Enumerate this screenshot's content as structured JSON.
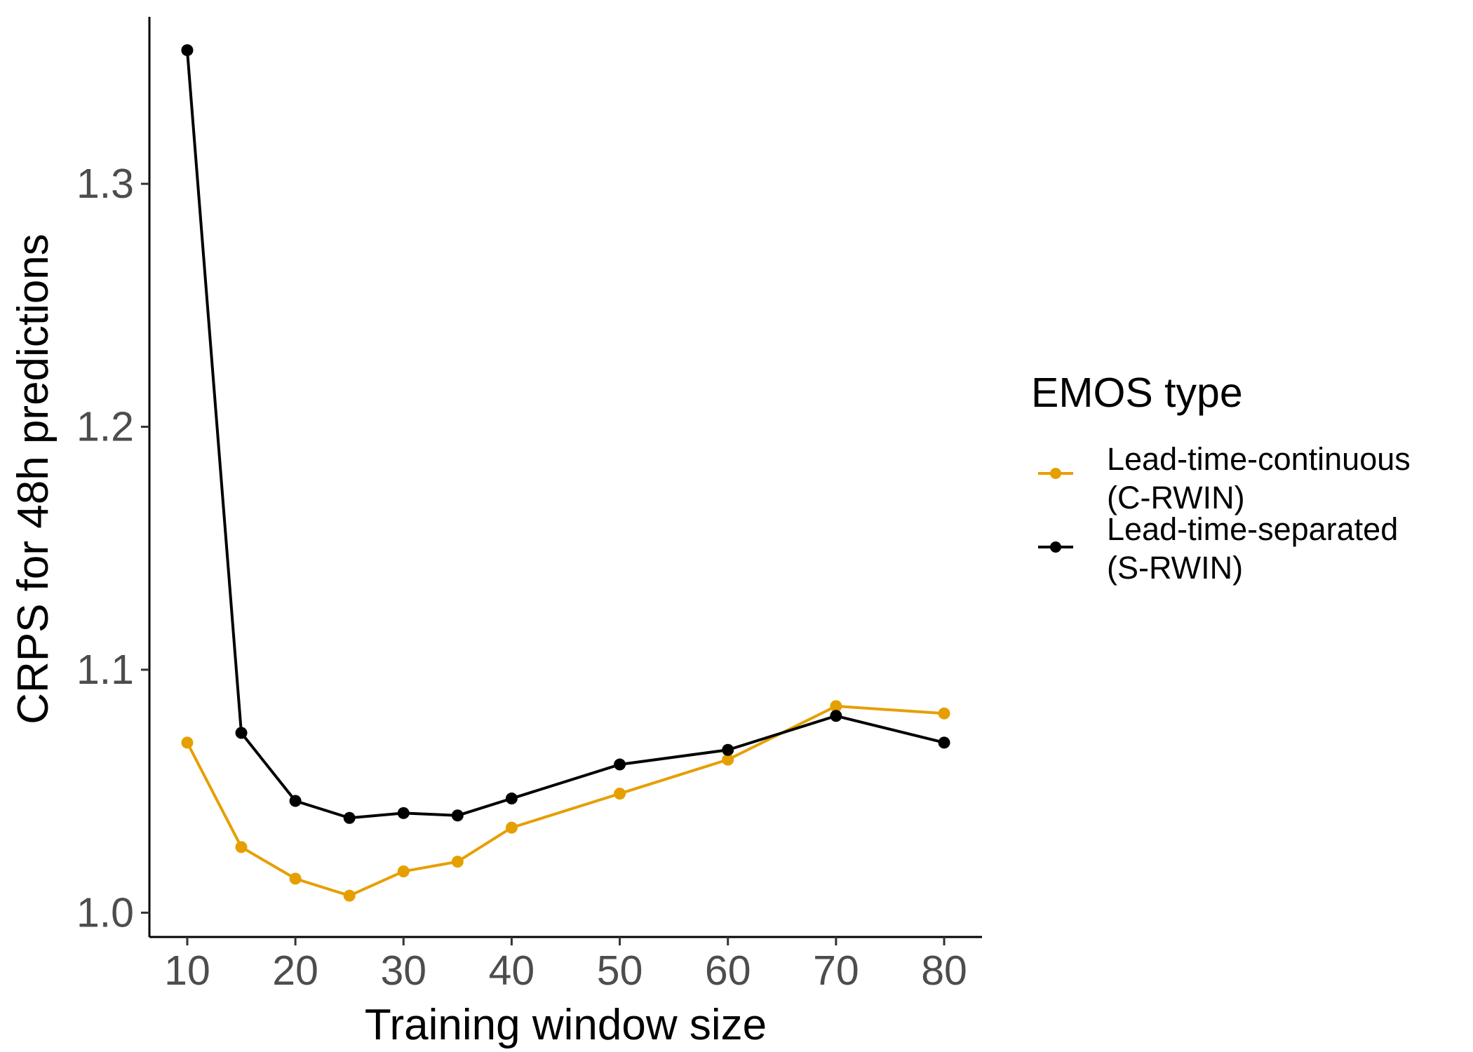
{
  "chart_data": {
    "type": "line",
    "title": "",
    "xlabel": "Training window size",
    "ylabel": "CRPS for 48h predictions",
    "x": [
      10,
      15,
      20,
      25,
      30,
      35,
      40,
      50,
      60,
      70,
      80
    ],
    "xticks": [
      "10",
      "20",
      "30",
      "40",
      "50",
      "60",
      "70",
      "80"
    ],
    "yticks": [
      "1.0",
      "1.1",
      "1.2",
      "1.3"
    ],
    "xlim": [
      6.5,
      83.5
    ],
    "ylim": [
      0.99,
      1.367
    ],
    "grid": false,
    "legend": {
      "title": "EMOS type",
      "placement": "right",
      "entries": [
        {
          "line1": "Lead-time-continuous",
          "line2": "(C-RWIN)"
        },
        {
          "line1": "Lead-time-separated",
          "line2": "(S-RWIN)"
        }
      ]
    },
    "series": [
      {
        "name": "Lead-time-continuous (C-RWIN)",
        "color": "#E69F00",
        "values": [
          1.07,
          1.027,
          1.014,
          1.007,
          1.017,
          1.021,
          1.035,
          1.049,
          1.063,
          1.085,
          1.082
        ]
      },
      {
        "name": "Lead-time-separated (S-RWIN)",
        "color": "#000000",
        "values": [
          1.355,
          1.074,
          1.046,
          1.039,
          1.041,
          1.04,
          1.047,
          1.061,
          1.067,
          1.081,
          1.07
        ]
      }
    ]
  }
}
